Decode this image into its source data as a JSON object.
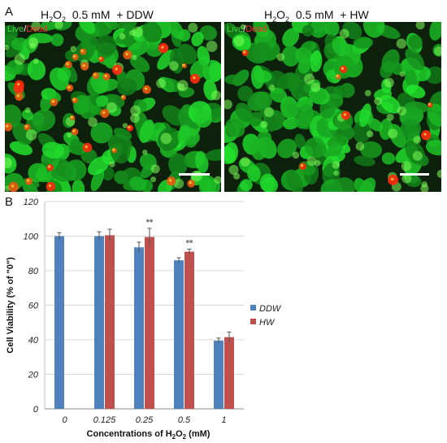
{
  "panel_a": {
    "letter": "A",
    "left": {
      "chem": "H",
      "sub": "2",
      "chem2": "O",
      "sub2": "2",
      "rest": "  0.5 mM  + DDW",
      "live": "Live",
      "slash": "/",
      "dead": "Dead"
    },
    "right": {
      "chem": "H",
      "sub": "2",
      "chem2": "O",
      "sub2": "2",
      "rest": "  0.5 mM  + HW",
      "live": "Live",
      "slash": "/",
      "dead": "Dead"
    },
    "colors": {
      "live": "#3fd03f",
      "dead": "#ff3030"
    }
  },
  "panel_b": {
    "letter": "B"
  },
  "chart_data": {
    "type": "bar",
    "categories": [
      "0",
      "0.125",
      "0.25",
      "0.5",
      "1"
    ],
    "series": [
      {
        "name": "DDW",
        "color": "#4f81bd",
        "values": [
          100,
          100,
          93.5,
          86,
          39.5
        ],
        "errors": [
          2,
          2.5,
          3,
          1.5,
          1.5
        ]
      },
      {
        "name": "HW",
        "color": "#c0504d",
        "values": [
          null,
          100.5,
          99.5,
          91,
          41.5
        ],
        "errors": [
          null,
          3.5,
          5,
          1.5,
          3
        ]
      }
    ],
    "significance": [
      null,
      null,
      "**",
      "**",
      null
    ],
    "ylabel": "Cell Viability (% of \"0\")",
    "xlabel_parts": {
      "pre": "Concentrations of H",
      "sub1": "2",
      "mid": "O",
      "sub2": "2",
      "post": " (mM)"
    },
    "yticks": [
      "0",
      "20",
      "40",
      "60",
      "80",
      "100",
      "120"
    ],
    "ylim": [
      0,
      120
    ],
    "grid": true,
    "legend_position": "right"
  }
}
